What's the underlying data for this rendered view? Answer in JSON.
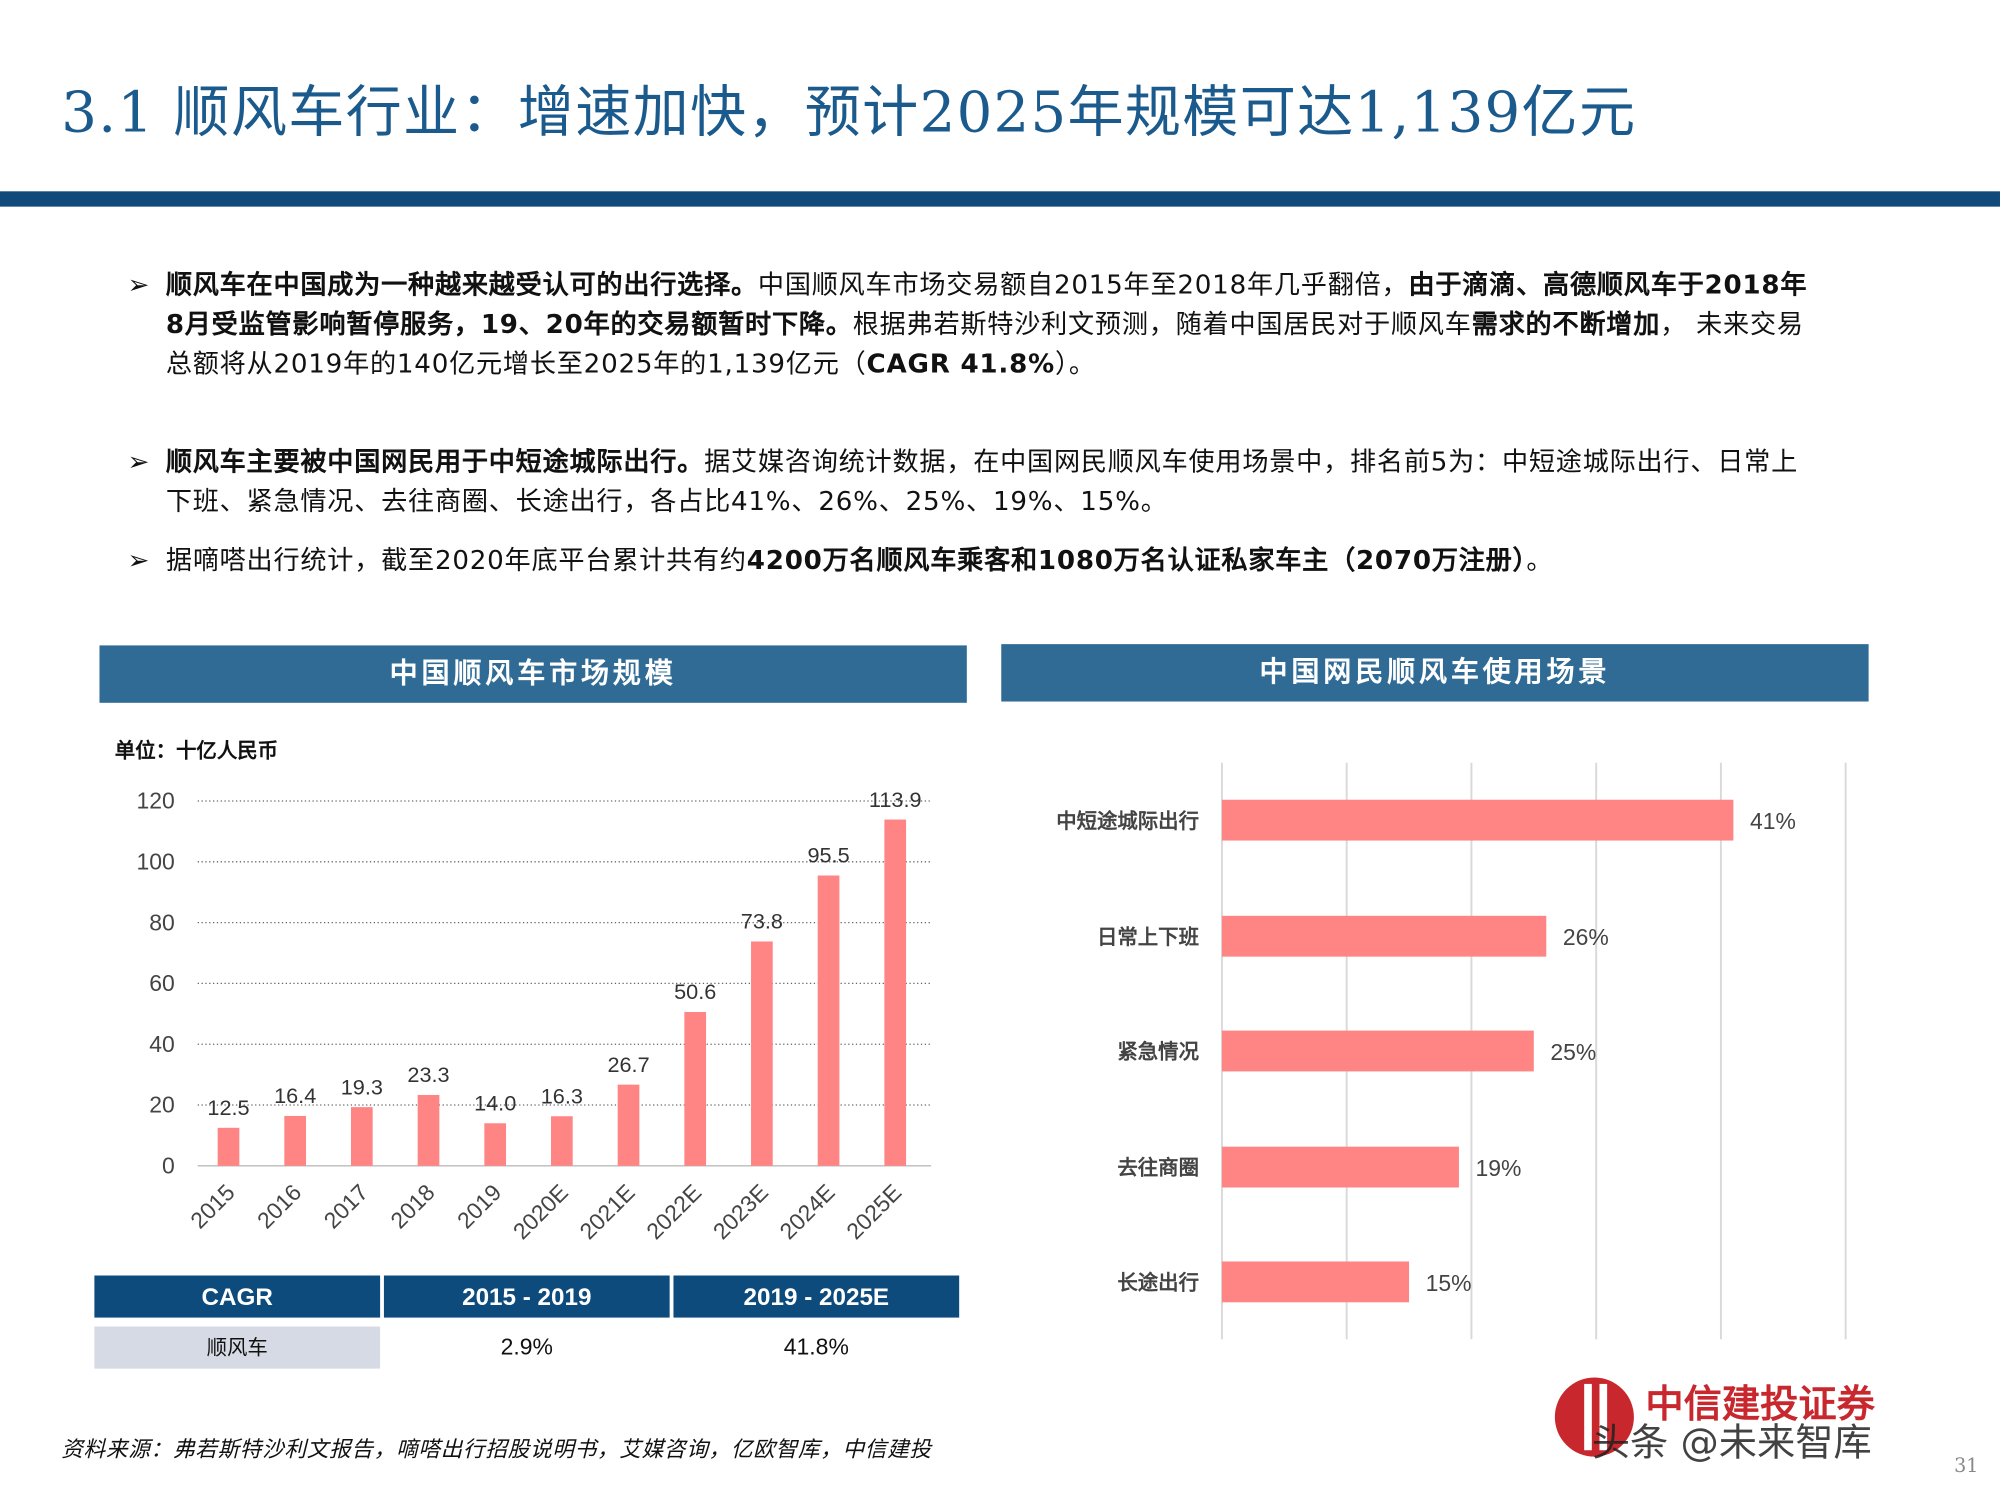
{
  "title": "3.1 顺风车行业：增速加快，预计2025年规模可达1,139亿元",
  "bullets": [
    {
      "parts": [
        {
          "t": "顺风车在中国成为一种越来越受认可的出行选择。",
          "b": true
        },
        {
          "t": "中国顺风车市场交易额自2015年至2018年几乎翻倍，",
          "b": false
        },
        {
          "t": "由于滴滴、高德顺风车于2018年8月受监管影响暂停服务，19、20年的交易额暂时下降。",
          "b": true
        },
        {
          "t": "根据弗若斯特沙利文预测，随着中国居民对于顺风车",
          "b": false
        },
        {
          "t": "需求的不断增加",
          "b": true
        },
        {
          "t": "，  未来交易总额将从2019年的140亿元增长至2025年的1,139亿元（",
          "b": false
        },
        {
          "t": "CAGR 41.8%",
          "b": true
        },
        {
          "t": "）。",
          "b": false
        }
      ]
    },
    {
      "parts": [
        {
          "t": "顺风车主要被中国网民用于中短途城际出行。",
          "b": true
        },
        {
          "t": "据艾媒咨询统计数据，在中国网民顺风车使用场景中，排名前5为：中短途城际出行、日常上下班、紧急情况、去往商圈、长途出行，各占比41%、26%、25%、19%、15%。",
          "b": false
        }
      ]
    },
    {
      "parts": [
        {
          "t": "据嘀嗒出行统计，截至2020年底平台累计共有约",
          "b": false
        },
        {
          "t": "4200万名顺风车乘客和1080万名认证私家车主（2070万注册）",
          "b": true
        },
        {
          "t": "。",
          "b": false
        }
      ]
    }
  ],
  "bullet_icon": "arrowhead-right-icon",
  "left_panel": {
    "header": "中国顺风车市场规模",
    "unit": "单位：十亿人民币"
  },
  "right_panel": {
    "header": "中国网民顺风车使用场景"
  },
  "colors": {
    "title": "#1b5a8c",
    "rule": "#0f4a7a",
    "panel_header": "#2f6b95",
    "bar": "#ff8585",
    "table_header": "#0d4b7c",
    "table_label_bg": "#d6dae4"
  },
  "chart_data": [
    {
      "type": "bar",
      "categories": [
        "2015",
        "2016",
        "2017",
        "2018",
        "2019",
        "2020E",
        "2021E",
        "2022E",
        "2023E",
        "2024E",
        "2025E"
      ],
      "values": [
        12.5,
        16.4,
        19.3,
        23.3,
        14.0,
        16.3,
        26.7,
        50.6,
        73.8,
        95.5,
        113.9
      ],
      "labels": [
        "12.5",
        "16.4",
        "19.3",
        "23.3",
        "14.0",
        "16.3",
        "26.7",
        "50.6",
        "73.8",
        "95.5",
        "113.9"
      ],
      "yticks": [
        "0",
        "20",
        "40",
        "60",
        "80",
        "100",
        "120"
      ],
      "ylim": [
        0,
        120
      ],
      "grid": true,
      "gridstyle": "dotted"
    },
    {
      "type": "bar",
      "orientation": "horizontal",
      "categories": [
        "中短途城际出行",
        "日常上下班",
        "紧急情况",
        "去往商圈",
        "长途出行"
      ],
      "values": [
        41,
        26,
        25,
        19,
        15
      ],
      "labels": [
        "41%",
        "26%",
        "25%",
        "19%",
        "15%"
      ],
      "xlim": [
        0,
        50
      ],
      "grid": true
    }
  ],
  "cagr_table": {
    "headers": [
      "CAGR",
      "2015 - 2019",
      "2019 - 2025E"
    ],
    "row": [
      "顺风车",
      "2.9%",
      "41.8%"
    ]
  },
  "source": "资料来源：弗若斯特沙利文报告，嘀嗒出行招股说明书，艾媒咨询，亿欧智库，中信建投",
  "logo": {
    "brand": "中信建投证券",
    "watermark": "头条 @未来智库"
  },
  "page_number": "31"
}
